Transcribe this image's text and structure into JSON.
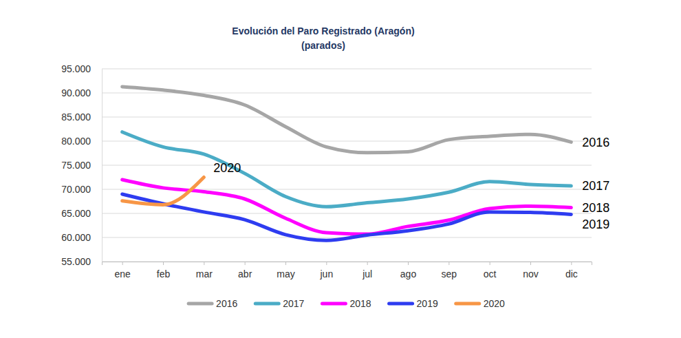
{
  "chart_data": {
    "type": "line",
    "title": "Evolución del Paro Registrado (Aragón)",
    "subtitle": "(parados)",
    "categories": [
      "ene",
      "feb",
      "mar",
      "abr",
      "may",
      "jun",
      "jul",
      "ago",
      "sep",
      "oct",
      "nov",
      "dic"
    ],
    "series": [
      {
        "name": "2016",
        "color": "#a6a6a6",
        "values": [
          91300,
          90600,
          89500,
          87500,
          83000,
          78800,
          77600,
          77800,
          80300,
          81000,
          81400,
          79800
        ]
      },
      {
        "name": "2017",
        "color": "#4bacc6",
        "values": [
          81900,
          78800,
          77300,
          73300,
          68500,
          66400,
          67200,
          68000,
          69400,
          71600,
          71000,
          70700
        ]
      },
      {
        "name": "2018",
        "color": "#ff00ff",
        "values": [
          72000,
          70300,
          69500,
          68000,
          64000,
          61000,
          60700,
          62300,
          63600,
          66000,
          66500,
          66200
        ]
      },
      {
        "name": "2019",
        "color": "#2e3cf0",
        "values": [
          69000,
          67000,
          65300,
          63700,
          60600,
          59400,
          60500,
          61400,
          62800,
          65300,
          65200,
          64800
        ]
      },
      {
        "name": "2020",
        "color": "#f79646",
        "values": [
          67600,
          66800,
          72500,
          null,
          null,
          null,
          null,
          null,
          null,
          null,
          null,
          null
        ]
      }
    ],
    "ylim": [
      55000,
      95000
    ],
    "yticks": [
      {
        "value": 55000,
        "label": "55.000"
      },
      {
        "value": 60000,
        "label": "60.000"
      },
      {
        "value": 65000,
        "label": "65.000"
      },
      {
        "value": 70000,
        "label": "70.000"
      },
      {
        "value": 75000,
        "label": "75.000"
      },
      {
        "value": 80000,
        "label": "80.000"
      },
      {
        "value": 85000,
        "label": "85.000"
      },
      {
        "value": 90000,
        "label": "90.000"
      },
      {
        "value": 95000,
        "label": "95.000"
      }
    ],
    "grid": true,
    "legend": "bottom"
  }
}
